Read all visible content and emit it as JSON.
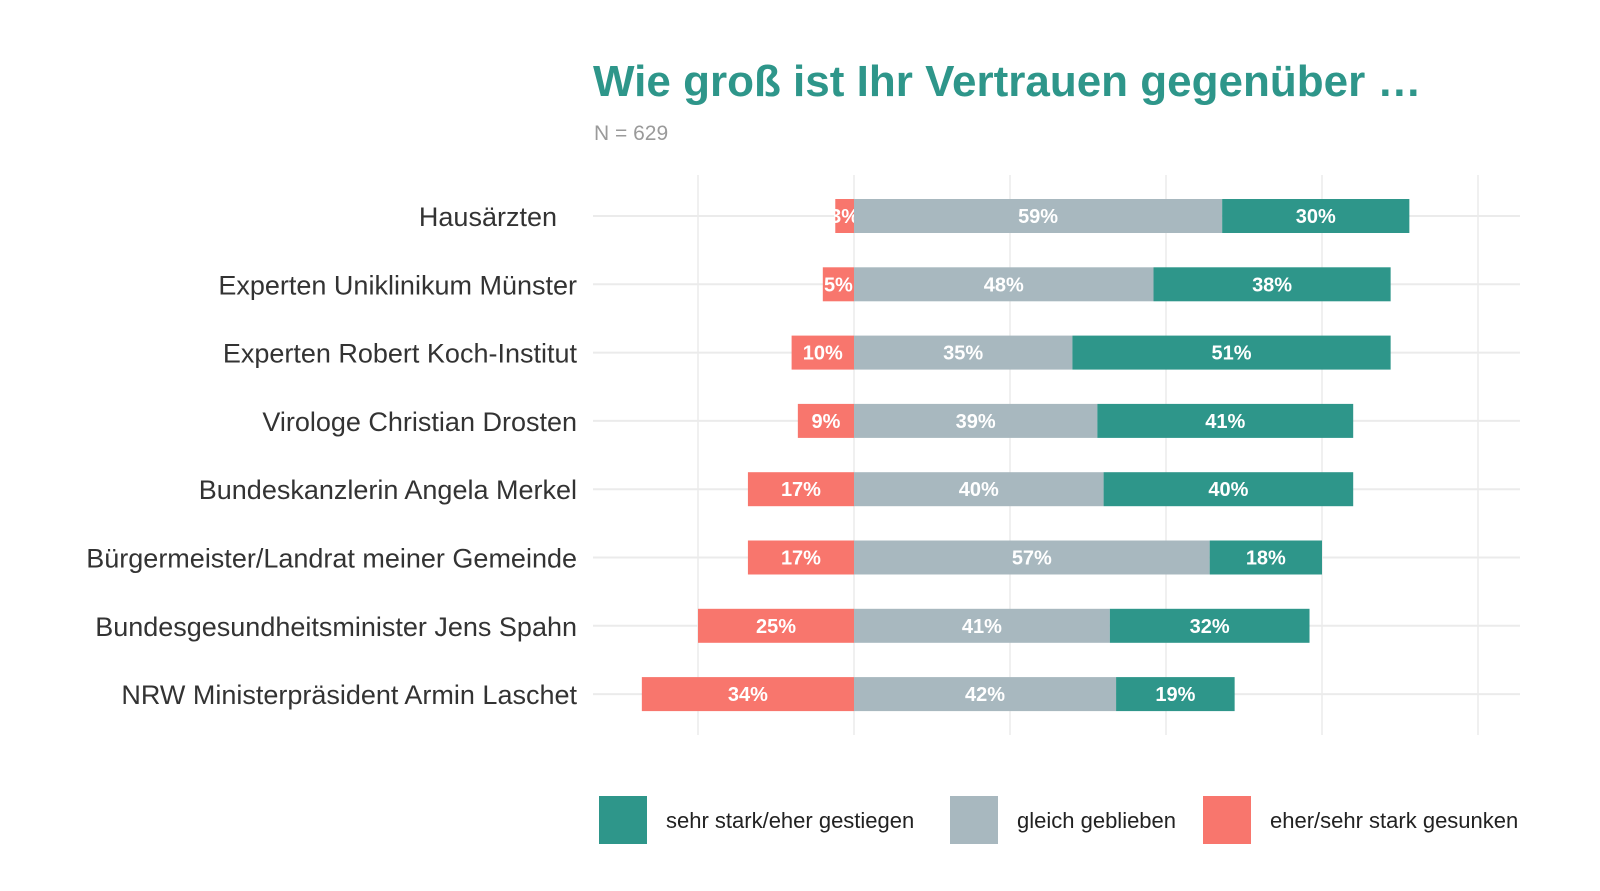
{
  "chart_data": {
    "type": "bar",
    "orientation": "horizontal",
    "stacked": "diverging",
    "title": "Wie groß ist Ihr Vertrauen gegenüber …",
    "subtitle": "N = 629",
    "xlabel": "",
    "ylabel": "",
    "xlim": [
      -34,
      100
    ],
    "x_gridlines": [
      -25,
      0,
      25,
      50,
      75,
      100
    ],
    "grid": true,
    "legend_position": "bottom",
    "categories": [
      "Hausärzten",
      "Experten Uniklinikum Münster",
      "Experten Robert Koch-Institut",
      "Virologe Christian Drosten",
      "Bundeskanzlerin Angela Merkel",
      "Bürgermeister/Landrat meiner Gemeinde",
      "Bundesgesundheitsminister Jens Spahn",
      "NRW Ministerpräsident Armin Laschet"
    ],
    "series": [
      {
        "name": "eher/sehr stark gesunken",
        "color": "#F8766D",
        "direction": "negative",
        "values": [
          3,
          5,
          10,
          9,
          17,
          17,
          25,
          34
        ],
        "labels": [
          "3%",
          "5%",
          "10%",
          "9%",
          "17%",
          "17%",
          "25%",
          "34%"
        ]
      },
      {
        "name": "gleich geblieben",
        "color": "#A8B8BF",
        "direction": "positive",
        "values": [
          59,
          48,
          35,
          39,
          40,
          57,
          41,
          42
        ],
        "labels": [
          "59%",
          "48%",
          "35%",
          "39%",
          "40%",
          "57%",
          "41%",
          "42%"
        ]
      },
      {
        "name": "sehr stark/eher gestiegen",
        "color": "#2E968A",
        "direction": "positive",
        "values": [
          30,
          38,
          51,
          41,
          40,
          18,
          32,
          19
        ],
        "labels": [
          "30%",
          "38%",
          "51%",
          "41%",
          "40%",
          "18%",
          "32%",
          "19%"
        ]
      }
    ],
    "legend": [
      {
        "label": "sehr stark/eher gestiegen",
        "color": "#2E968A"
      },
      {
        "label": "gleich geblieben",
        "color": "#A8B8BF"
      },
      {
        "label": "eher/sehr stark gesunken",
        "color": "#F8766D"
      }
    ]
  }
}
